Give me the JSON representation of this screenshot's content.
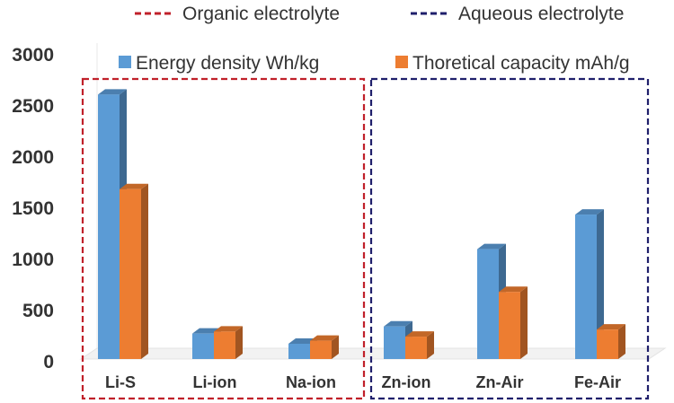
{
  "chart_data": {
    "type": "bar",
    "categories": [
      "Li-S",
      "Li-ion",
      "Na-ion",
      "Zn-ion",
      "Zn-Air",
      "Fe-Air"
    ],
    "series": [
      {
        "name": "Energy density Wh/kg",
        "values": [
          2600,
          250,
          150,
          320,
          1080,
          1420
        ],
        "color": "#5B9BD5"
      },
      {
        "name": "Thoretical capacity mAh/g",
        "values": [
          1670,
          270,
          180,
          220,
          660,
          290
        ],
        "color": "#ED7D31"
      }
    ],
    "yticks": [
      "3000",
      "2500",
      "2000",
      "1500",
      "1000",
      "500",
      "0"
    ],
    "ylim": [
      0,
      3000
    ],
    "groups": [
      {
        "label": "Organic electrolyte",
        "color": "#C0202A",
        "categories": [
          "Li-S",
          "Li-ion",
          "Na-ion"
        ]
      },
      {
        "label": "Aqueous electrolyte",
        "color": "#1F1F6B",
        "categories": [
          "Zn-ion",
          "Zn-Air",
          "Fe-Air"
        ]
      }
    ],
    "grid": false,
    "legend_position": "top-right"
  }
}
